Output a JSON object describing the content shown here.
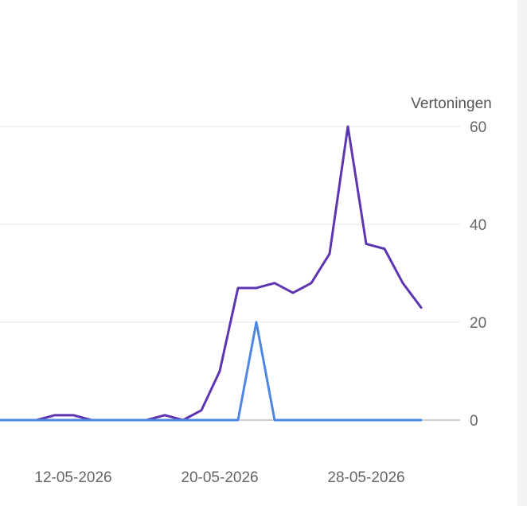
{
  "chart_data": {
    "type": "line",
    "ylabel": "Vertoningen",
    "ylim": [
      0,
      60
    ],
    "yticks": [
      0,
      20,
      40,
      60
    ],
    "y_axis_position": "right",
    "grid": true,
    "x_tick_labels": [
      "12-05-2026",
      "20-05-2026",
      "28-05-2026"
    ],
    "x": [
      "07-05-2026",
      "08-05-2026",
      "09-05-2026",
      "10-05-2026",
      "11-05-2026",
      "12-05-2026",
      "13-05-2026",
      "14-05-2026",
      "15-05-2026",
      "16-05-2026",
      "17-05-2026",
      "18-05-2026",
      "19-05-2026",
      "20-05-2026",
      "21-05-2026",
      "22-05-2026",
      "23-05-2026",
      "24-05-2026",
      "25-05-2026",
      "26-05-2026",
      "27-05-2026",
      "28-05-2026",
      "29-05-2026",
      "30-05-2026",
      "31-05-2026"
    ],
    "series": [
      {
        "color": "#5e35b1",
        "values": [
          0,
          0,
          0,
          0,
          1,
          1,
          0,
          0,
          0,
          0,
          1,
          0,
          2,
          10,
          27,
          27,
          28,
          26,
          28,
          34,
          60,
          36,
          35,
          28,
          23
        ]
      },
      {
        "color": "#4e86e4",
        "values": [
          0,
          0,
          0,
          0,
          0,
          0,
          0,
          0,
          0,
          0,
          0,
          0,
          0,
          0,
          0,
          20,
          0,
          0,
          0,
          0,
          0,
          0,
          0,
          0,
          0
        ]
      }
    ]
  }
}
